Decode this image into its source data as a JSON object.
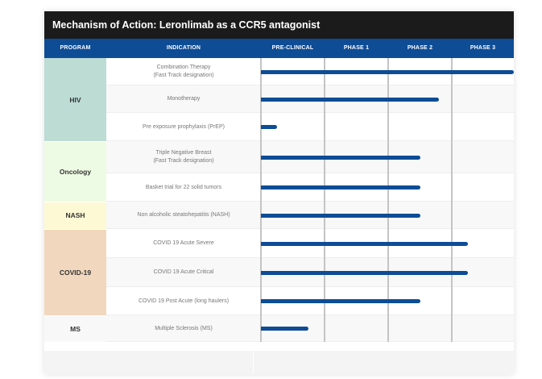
{
  "chart_data": {
    "type": "table",
    "title": "Mechanism of Action: Leronlimab as a CCR5 antagonist",
    "headers": [
      "PROGRAM",
      "INDICATION",
      "PRE-CLINICAL",
      "PHASE 1",
      "PHASE 2",
      "PHASE 3"
    ],
    "programs": [
      {
        "name": "HIV",
        "color": "#bcdcd4",
        "rows": 3
      },
      {
        "name": "Oncology",
        "color": "#eefbe4",
        "rows": 2
      },
      {
        "name": "NASH",
        "color": "#fdf9d4",
        "rows": 1
      },
      {
        "name": "COVID-19",
        "color": "#f1d7bd",
        "rows": 3
      },
      {
        "name": "MS",
        "color": "#f8f8f8",
        "rows": 1
      }
    ],
    "rows": [
      {
        "indication": [
          "Combination Therapy",
          "(Fast Track designation)"
        ],
        "progress": 4.0
      },
      {
        "indication": [
          "Monotherapy"
        ],
        "progress": 2.8
      },
      {
        "indication": [
          "Pre exposure prophylaxis (PrEP)"
        ],
        "progress": 0.25
      },
      {
        "indication": [
          "Triple Negative Breast",
          "(Fast Track designation)"
        ],
        "progress": 2.5
      },
      {
        "indication": [
          "Basket trial for 22 solid tumors"
        ],
        "progress": 2.5
      },
      {
        "indication": [
          "Non alcoholic steatohepatitis (NASH)"
        ],
        "progress": 2.5
      },
      {
        "indication": [
          "COVID 19 Acute Severe"
        ],
        "progress": 3.25
      },
      {
        "indication": [
          "COVID 19 Acute Critical"
        ],
        "progress": 3.25
      },
      {
        "indication": [
          "COVID 19 Post Acute (long haulers)"
        ],
        "progress": 2.5
      },
      {
        "indication": [
          "Multiple Sclerosis (MS)"
        ],
        "progress": 0.75
      }
    ],
    "progress_scale": "phase columns completed, 0 to 4",
    "colors": {
      "bar": "#0e4c96",
      "header": "#0e4c96",
      "title_bg": "#1b1b1b",
      "stripe": "#f8f8f8"
    }
  }
}
